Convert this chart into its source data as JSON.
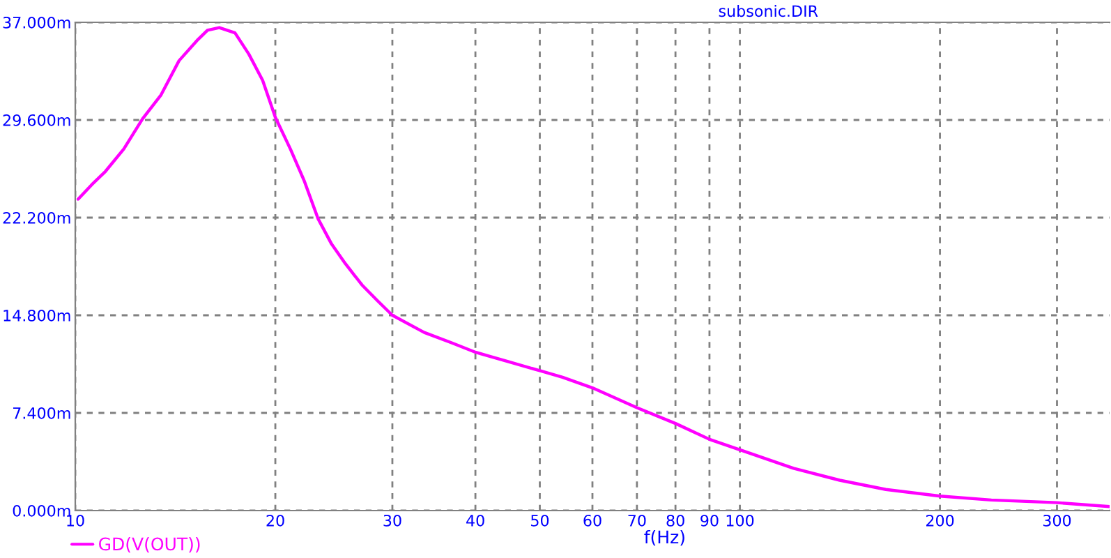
{
  "chart_data": {
    "type": "line",
    "xlabel": "f(Hz)",
    "annotations": [
      "subsonic.DIR"
    ],
    "log": "x",
    "grid": true,
    "legend": "bottom left",
    "marker": "none",
    "line_style": "solid",
    "xlim": [
      10,
      360
    ],
    "xticks": [
      10,
      20,
      30,
      40,
      50,
      60,
      70,
      80,
      90,
      100,
      200,
      300
    ],
    "ylim": [
      0,
      37
    ],
    "yticks": [
      {
        "value": 0,
        "label": "0.000m"
      },
      {
        "value": 7.4,
        "label": "7.400m"
      },
      {
        "value": 14.8,
        "label": "14.800m"
      },
      {
        "value": 22.2,
        "label": "22.200m"
      },
      {
        "value": 29.6,
        "label": "29.600m"
      },
      {
        "value": 37,
        "label": "37.000m"
      }
    ],
    "series": [
      {
        "name": "GD(V(OUT))",
        "color": "#ff00ff",
        "x": [
          10.1,
          10.59,
          11.1,
          11.83,
          12.63,
          13.46,
          14.33,
          15.3,
          15.81,
          16.47,
          17.39,
          18.24,
          19.14,
          20.0,
          21.07,
          22.1,
          23.2,
          24.3,
          25.5,
          27.0,
          28.5,
          30.0,
          33.5,
          36.9,
          40,
          44.7,
          50,
          54.1,
          60,
          70,
          80,
          90,
          100,
          120.4,
          141.3,
          165.8,
          200,
          239,
          300,
          360
        ],
        "values": [
          23.6,
          24.7,
          25.7,
          27.4,
          29.7,
          31.5,
          34.1,
          35.7,
          36.4,
          36.6,
          36.2,
          34.6,
          32.6,
          29.8,
          27.4,
          25.0,
          22.1,
          20.2,
          18.7,
          17.1,
          15.9,
          14.8,
          13.5,
          12.7,
          12.0,
          11.3,
          10.6,
          10.1,
          9.3,
          7.8,
          6.6,
          5.4,
          4.6,
          3.2,
          2.3,
          1.6,
          1.1,
          0.8,
          0.6,
          0.3
        ]
      }
    ]
  }
}
